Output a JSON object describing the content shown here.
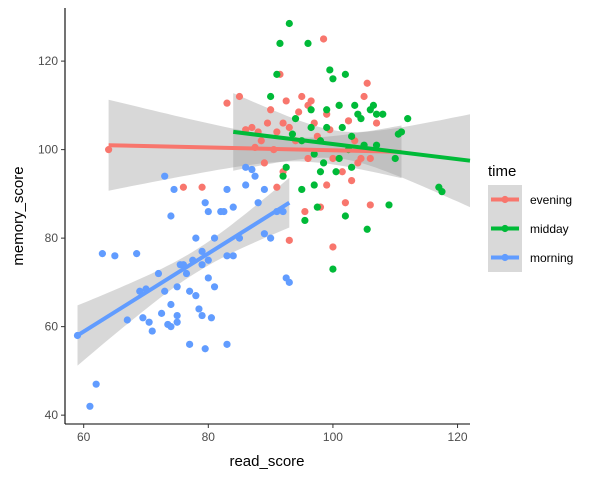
{
  "chart_data": {
    "type": "scatter",
    "xlabel": "read_score",
    "ylabel": "memory_score",
    "xlim": [
      57,
      122
    ],
    "ylim": [
      38,
      132
    ],
    "x_ticks": [
      60,
      80,
      100,
      120
    ],
    "y_ticks": [
      40,
      60,
      80,
      100,
      120
    ],
    "grid": false,
    "legend": {
      "title": "time",
      "position": "right"
    },
    "series": [
      {
        "name": "evening",
        "color": "#F8766D",
        "points": [
          [
            64,
            100
          ],
          [
            83,
            110.5
          ],
          [
            85,
            112
          ],
          [
            86,
            104.5
          ],
          [
            87,
            105
          ],
          [
            87.5,
            100.5
          ],
          [
            88,
            104
          ],
          [
            89,
            97
          ],
          [
            89.5,
            106
          ],
          [
            90,
            109
          ],
          [
            90.5,
            100
          ],
          [
            91,
            104
          ],
          [
            91.5,
            117
          ],
          [
            92,
            106
          ],
          [
            92.5,
            111
          ],
          [
            93,
            105
          ],
          [
            93,
            79.5
          ],
          [
            94,
            102
          ],
          [
            94.5,
            108.5
          ],
          [
            95,
            112
          ],
          [
            95.5,
            86
          ],
          [
            96,
            110
          ],
          [
            96.5,
            111
          ],
          [
            97,
            106
          ],
          [
            97.5,
            103
          ],
          [
            98,
            87
          ],
          [
            98.5,
            125
          ],
          [
            99,
            108
          ],
          [
            99.5,
            104.5
          ],
          [
            100,
            78
          ],
          [
            100,
            98
          ],
          [
            101,
            110
          ],
          [
            101.5,
            95
          ],
          [
            102,
            88
          ],
          [
            102.5,
            106.5
          ],
          [
            103,
            93
          ],
          [
            103.5,
            102
          ],
          [
            104,
            97
          ],
          [
            104.5,
            98
          ],
          [
            105,
            112
          ],
          [
            105.5,
            115
          ],
          [
            106,
            87.5
          ],
          [
            106,
            98
          ],
          [
            107,
            106
          ],
          [
            76,
            91.5
          ],
          [
            79,
            91.5
          ],
          [
            88.5,
            102
          ],
          [
            91,
            91.5
          ],
          [
            92,
            95
          ],
          [
            96,
            98
          ],
          [
            99,
            92
          ]
        ],
        "trend": {
          "x": [
            64,
            111
          ],
          "y": [
            101,
            99.5
          ]
        }
      },
      {
        "name": "midday",
        "color": "#00BA38",
        "points": [
          [
            90,
            112
          ],
          [
            91,
            117
          ],
          [
            91.5,
            124
          ],
          [
            92,
            94
          ],
          [
            92.5,
            96
          ],
          [
            93,
            128.5
          ],
          [
            93.5,
            103.5
          ],
          [
            94,
            107
          ],
          [
            95,
            102
          ],
          [
            95,
            91
          ],
          [
            96,
            124
          ],
          [
            96.5,
            109
          ],
          [
            97,
            92
          ],
          [
            97.5,
            87
          ],
          [
            98,
            95
          ],
          [
            98,
            102
          ],
          [
            98.5,
            97
          ],
          [
            99,
            109
          ],
          [
            99.5,
            118
          ],
          [
            100,
            116
          ],
          [
            100,
            73
          ],
          [
            100.5,
            95
          ],
          [
            101,
            110
          ],
          [
            101.5,
            105
          ],
          [
            102,
            117
          ],
          [
            102,
            85
          ],
          [
            102.5,
            100
          ],
          [
            103,
            96
          ],
          [
            103.5,
            110
          ],
          [
            104,
            108
          ],
          [
            104.5,
            107
          ],
          [
            105,
            101
          ],
          [
            105.5,
            82
          ],
          [
            106,
            109
          ],
          [
            106.5,
            110
          ],
          [
            107,
            108
          ],
          [
            107,
            101
          ],
          [
            108,
            108
          ],
          [
            109,
            87.5
          ],
          [
            110,
            98
          ],
          [
            110.5,
            103.5
          ],
          [
            111,
            104
          ],
          [
            112,
            107
          ],
          [
            117,
            91.5
          ],
          [
            117.5,
            90.5
          ],
          [
            95.5,
            84
          ],
          [
            96.5,
            105
          ],
          [
            97,
            99
          ],
          [
            99,
            105
          ],
          [
            101,
            98
          ],
          [
            103,
            103
          ]
        ],
        "trend": {
          "x": [
            84,
            122
          ],
          "y": [
            104,
            97.5
          ]
        }
      },
      {
        "name": "morning",
        "color": "#619CFF",
        "points": [
          [
            59,
            58
          ],
          [
            61,
            42
          ],
          [
            62,
            47
          ],
          [
            63,
            76.5
          ],
          [
            65,
            76
          ],
          [
            67,
            61.5
          ],
          [
            68.5,
            76.5
          ],
          [
            69,
            68
          ],
          [
            69.5,
            62
          ],
          [
            70,
            68.5
          ],
          [
            70.5,
            61
          ],
          [
            71,
            59
          ],
          [
            72,
            72
          ],
          [
            72.5,
            63
          ],
          [
            73,
            94
          ],
          [
            73,
            68
          ],
          [
            73.5,
            60.5
          ],
          [
            74,
            60
          ],
          [
            74,
            65
          ],
          [
            74.5,
            91
          ],
          [
            74,
            85
          ],
          [
            75,
            61
          ],
          [
            75.5,
            74
          ],
          [
            75,
            62.5
          ],
          [
            76,
            74
          ],
          [
            76.5,
            72
          ],
          [
            77,
            56
          ],
          [
            77,
            68
          ],
          [
            77.5,
            75
          ],
          [
            78,
            80
          ],
          [
            78,
            67
          ],
          [
            78.5,
            64
          ],
          [
            79,
            74
          ],
          [
            79,
            62.5
          ],
          [
            79.5,
            88
          ],
          [
            79.5,
            55
          ],
          [
            80,
            86
          ],
          [
            80,
            71
          ],
          [
            80.5,
            62
          ],
          [
            81,
            69
          ],
          [
            81,
            80
          ],
          [
            82,
            86
          ],
          [
            82.5,
            86
          ],
          [
            83,
            91
          ],
          [
            83,
            56
          ],
          [
            84,
            87
          ],
          [
            84,
            76
          ],
          [
            85,
            80
          ],
          [
            86,
            96
          ],
          [
            86,
            92
          ],
          [
            87,
            95.5
          ],
          [
            87.5,
            94
          ],
          [
            88,
            88
          ],
          [
            89,
            91
          ],
          [
            89,
            81
          ],
          [
            90,
            80
          ],
          [
            91,
            86
          ],
          [
            92,
            86
          ],
          [
            92.5,
            71
          ],
          [
            93,
            70
          ],
          [
            83,
            76
          ],
          [
            80,
            75
          ],
          [
            75,
            69
          ],
          [
            79,
            77
          ]
        ],
        "trend": {
          "x": [
            59,
            93
          ],
          "y": [
            58,
            88
          ]
        }
      }
    ]
  }
}
